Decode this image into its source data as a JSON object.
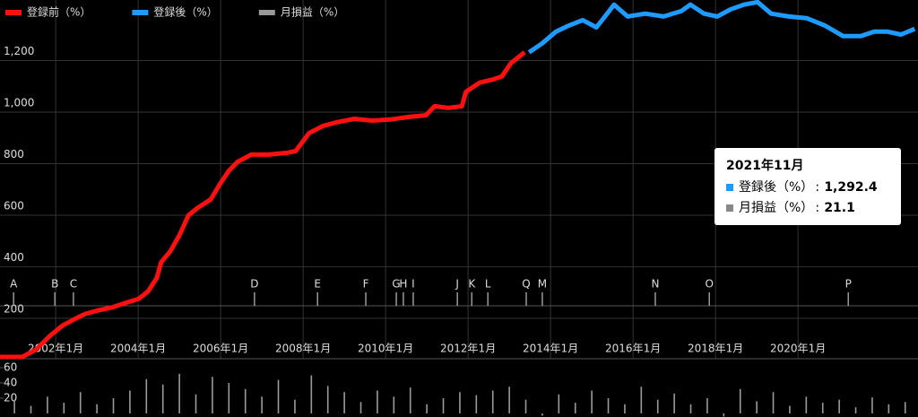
{
  "chart_data": [
    {
      "type": "line",
      "legend": "top-left",
      "series": [
        {
          "name": "登録前（%）",
          "color": "#ff1010",
          "x": [
            2000.65,
            2001.19,
            2001.52,
            2001.85,
            2002.17,
            2002.5,
            2002.72,
            2003.04,
            2003.37,
            2003.69,
            2004.02,
            2004.24,
            2004.45,
            2004.56,
            2004.78,
            2005.0,
            2005.22,
            2005.43,
            2005.76,
            2005.98,
            2006.2,
            2006.41,
            2006.74,
            2007.17,
            2007.61,
            2007.82,
            2008.15,
            2008.48,
            2008.8,
            2009.24,
            2009.67,
            2010.11,
            2010.54,
            2010.98,
            2011.19,
            2011.52,
            2011.85,
            2011.95,
            2012.28,
            2012.61,
            2012.82,
            2013.04,
            2013.37
          ],
          "values": [
            50,
            50,
            78,
            130,
            172,
            200,
            217,
            231,
            242,
            259,
            276,
            304,
            356,
            418,
            460,
            522,
            599,
            627,
            661,
            720,
            772,
            807,
            835,
            835,
            842,
            849,
            919,
            946,
            960,
            974,
            967,
            971,
            981,
            988,
            1023,
            1016,
            1023,
            1079,
            1114,
            1127,
            1138,
            1190,
            1232
          ]
        },
        {
          "name": "登録後（%）",
          "color": "#1e9bff",
          "x": [
            2013.48,
            2013.8,
            2014.13,
            2014.45,
            2014.78,
            2015.11,
            2015.32,
            2015.54,
            2015.87,
            2016.3,
            2016.74,
            2017.17,
            2017.39,
            2017.72,
            2018.04,
            2018.37,
            2018.69,
            2019.02,
            2019.35,
            2019.78,
            2020.22,
            2020.65,
            2021.09,
            2021.52,
            2021.85,
            2022.17,
            2022.5,
            2022.83
          ],
          "values": [
            1232,
            1267,
            1312,
            1336,
            1357,
            1329,
            1371,
            1417,
            1371,
            1382,
            1371,
            1392,
            1417,
            1382,
            1371,
            1399,
            1417,
            1427,
            1382,
            1371,
            1364,
            1336,
            1295,
            1295,
            1312,
            1312,
            1301,
            1323
          ]
        }
      ],
      "xlim": [
        2000.65,
        2022.91
      ],
      "xticks": [
        {
          "value": 2002,
          "label": "2002年1月"
        },
        {
          "value": 2004,
          "label": "2004年1月"
        },
        {
          "value": 2006,
          "label": "2006年1月"
        },
        {
          "value": 2008,
          "label": "2008年1月"
        },
        {
          "value": 2010,
          "label": "2010年1月"
        },
        {
          "value": 2012,
          "label": "2012年1月"
        },
        {
          "value": 2014,
          "label": "2014年1月"
        },
        {
          "value": 2016,
          "label": "2016年1月"
        },
        {
          "value": 2018,
          "label": "2018年1月"
        },
        {
          "value": 2020,
          "label": "2020年1月"
        }
      ],
      "ylim": [
        50,
        1435
      ],
      "yticks": [
        200,
        400,
        600,
        800,
        {
          "value": 1000,
          "label": "1,000"
        },
        {
          "value": 1200,
          "label": "1,200"
        }
      ],
      "grid": true,
      "annotations": [
        {
          "label": "A",
          "x": 2000.98
        },
        {
          "label": "B",
          "x": 2001.98
        },
        {
          "label": "C",
          "x": 2002.43
        },
        {
          "label": "D",
          "x": 2006.82
        },
        {
          "label": "E",
          "x": 2008.35
        },
        {
          "label": "F",
          "x": 2009.52
        },
        {
          "label": "G",
          "x": 2010.26
        },
        {
          "label": "H",
          "x": 2010.43
        },
        {
          "label": "I",
          "x": 2010.67
        },
        {
          "label": "J",
          "x": 2011.74
        },
        {
          "label": "K",
          "x": 2012.09
        },
        {
          "label": "L",
          "x": 2012.48
        },
        {
          "label": "Q",
          "x": 2013.41
        },
        {
          "label": "M",
          "x": 2013.8
        },
        {
          "label": "N",
          "x": 2016.54
        },
        {
          "label": "O",
          "x": 2017.85
        },
        {
          "label": "P",
          "x": 2021.22
        }
      ],
      "tooltip": {
        "title": "2021年11月",
        "rows": [
          {
            "name": "登録後（%）",
            "color": "#1e9bff",
            "text": "1,292.4"
          },
          {
            "name": "月損益（%）",
            "color": "#888888",
            "text": "21.1"
          }
        ]
      }
    },
    {
      "type": "bar",
      "name": "月損益（%）",
      "color": "#9a9a9a",
      "x": [
        2001.0,
        2001.4,
        2001.8,
        2002.2,
        2002.6,
        2003.0,
        2003.4,
        2003.8,
        2004.2,
        2004.6,
        2005.0,
        2005.4,
        2005.8,
        2006.2,
        2006.6,
        2007.0,
        2007.4,
        2007.8,
        2008.2,
        2008.6,
        2009.0,
        2009.4,
        2009.8,
        2010.2,
        2010.6,
        2011.0,
        2011.4,
        2011.8,
        2012.2,
        2012.6,
        2013.0,
        2013.4,
        2013.8,
        2014.2,
        2014.6,
        2015.0,
        2015.4,
        2015.8,
        2016.2,
        2016.6,
        2017.0,
        2017.4,
        2017.8,
        2018.2,
        2018.6,
        2019.0,
        2019.4,
        2019.8,
        2020.2,
        2020.6,
        2021.0,
        2021.4,
        2021.8,
        2022.2,
        2022.6
      ],
      "values": [
        18,
        10,
        22,
        14,
        28,
        12,
        20,
        30,
        45,
        38,
        52,
        25,
        48,
        40,
        32,
        22,
        44,
        18,
        50,
        36,
        28,
        15,
        30,
        22,
        34,
        12,
        20,
        28,
        24,
        30,
        35,
        18,
        -3,
        25,
        14,
        30,
        20,
        12,
        35,
        18,
        26,
        12,
        20,
        -4,
        32,
        16,
        28,
        10,
        22,
        14,
        18,
        8,
        21,
        12,
        15
      ],
      "ylim": [
        -4.7,
        71.8
      ],
      "yticks": [
        20,
        40,
        60
      ]
    }
  ]
}
